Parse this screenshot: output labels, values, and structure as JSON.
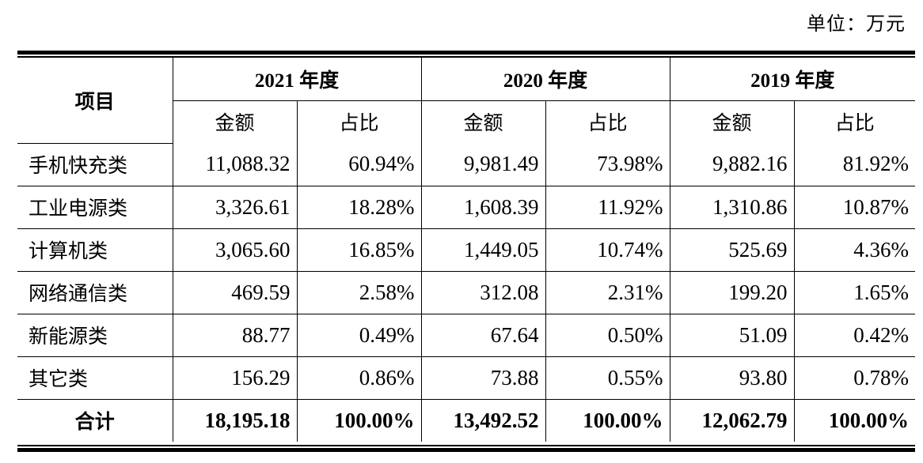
{
  "unit_label": "单位：万元",
  "header": {
    "item_label": "项目",
    "years": [
      "2021 年度",
      "2020 年度",
      "2019 年度"
    ],
    "amount_label": "金额",
    "ratio_label": "占比"
  },
  "rows": [
    {
      "name": "手机快充类",
      "v": [
        "11,088.32",
        "60.94%",
        "9,981.49",
        "73.98%",
        "9,882.16",
        "81.92%"
      ]
    },
    {
      "name": "工业电源类",
      "v": [
        "3,326.61",
        "18.28%",
        "1,608.39",
        "11.92%",
        "1,310.86",
        "10.87%"
      ]
    },
    {
      "name": "计算机类",
      "v": [
        "3,065.60",
        "16.85%",
        "1,449.05",
        "10.74%",
        "525.69",
        "4.36%"
      ]
    },
    {
      "name": "网络通信类",
      "v": [
        "469.59",
        "2.58%",
        "312.08",
        "2.31%",
        "199.20",
        "1.65%"
      ]
    },
    {
      "name": "新能源类",
      "v": [
        "88.77",
        "0.49%",
        "67.64",
        "0.50%",
        "51.09",
        "0.42%"
      ]
    },
    {
      "name": "其它类",
      "v": [
        "156.29",
        "0.86%",
        "73.88",
        "0.55%",
        "93.80",
        "0.78%"
      ]
    }
  ],
  "total": {
    "name": "合计",
    "v": [
      "18,195.18",
      "100.00%",
      "13,492.52",
      "100.00%",
      "12,062.79",
      "100.00%"
    ]
  }
}
